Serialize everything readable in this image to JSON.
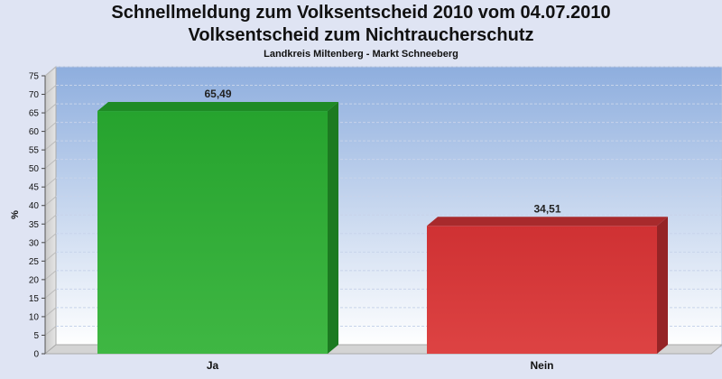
{
  "title": "Schnellmeldung zum Volksentscheid 2010 vom 04.07.2010",
  "subtitle": "Volksentscheid zum Nichtraucherschutz",
  "subsubtitle": "Landkreis Miltenberg - Markt Schneeberg",
  "chart_data": {
    "type": "bar",
    "categories": [
      "Ja",
      "Nein"
    ],
    "values": [
      65.49,
      34.51
    ],
    "value_labels": [
      "65,49",
      "34,51"
    ],
    "ylabel": "%",
    "xlabel": "",
    "ylim": [
      0,
      75
    ],
    "yticks": [
      0,
      5,
      10,
      15,
      20,
      25,
      30,
      35,
      40,
      45,
      50,
      55,
      60,
      65,
      70,
      75
    ],
    "grid": true,
    "colors": [
      "#2ea832",
      "#d63b3b"
    ]
  }
}
